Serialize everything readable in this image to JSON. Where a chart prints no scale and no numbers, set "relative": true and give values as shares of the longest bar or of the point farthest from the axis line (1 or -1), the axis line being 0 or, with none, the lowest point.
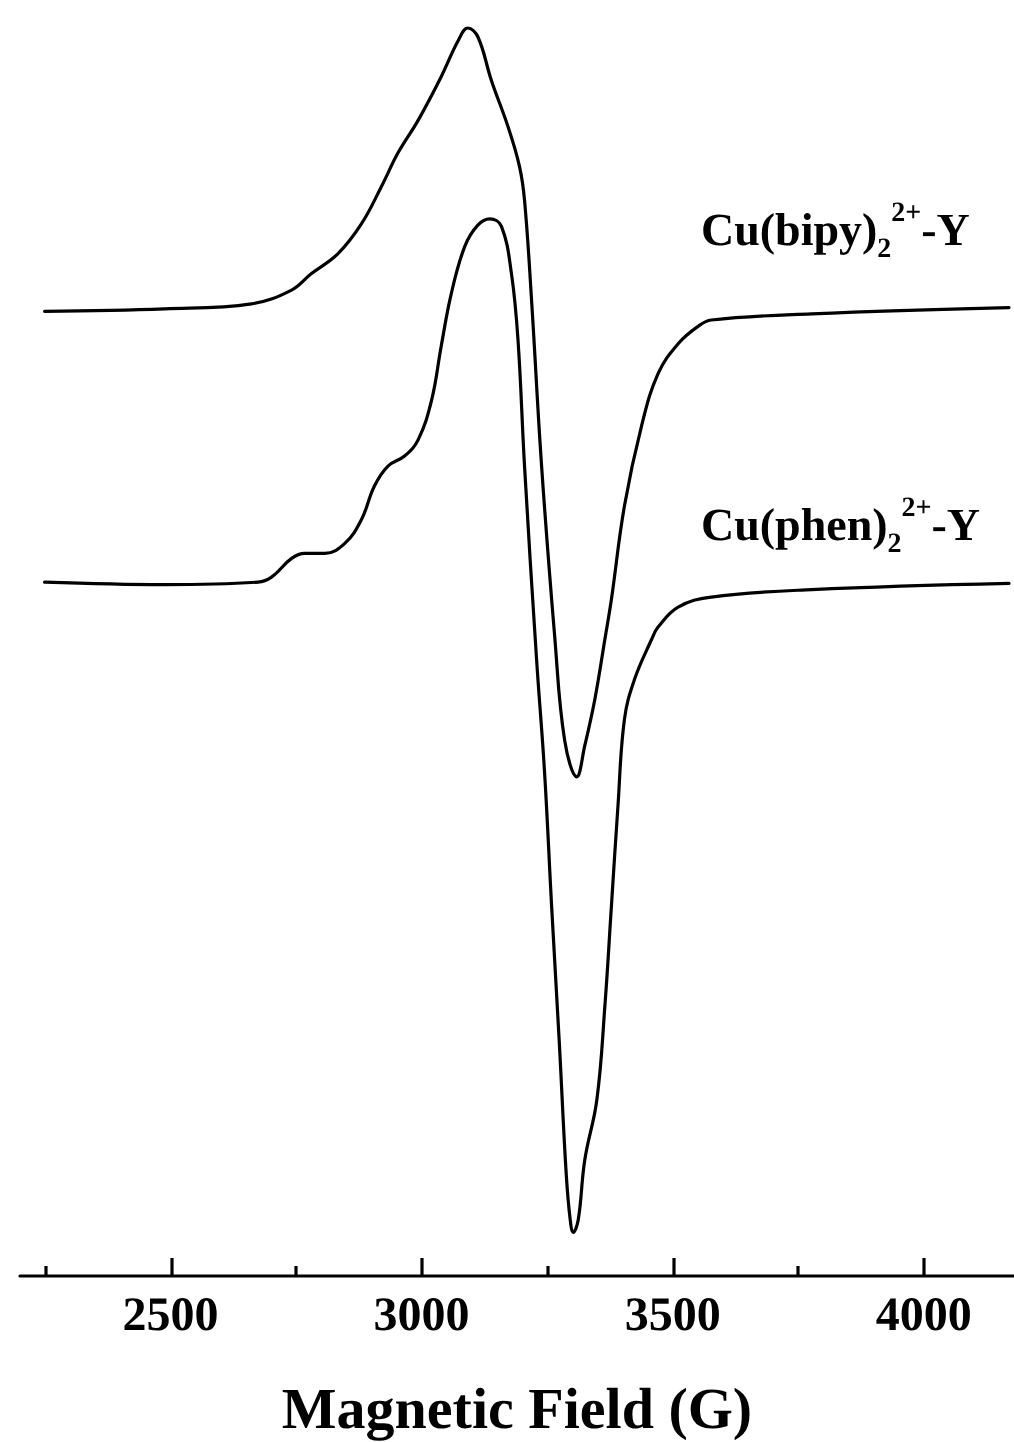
{
  "chart_data": {
    "type": "line",
    "xlabel": "Magnetic Field (G)",
    "relative": true,
    "tick_labels": "x",
    "marker": "none",
    "line_style": "solid",
    "xlim": [
      2200,
      4180
    ],
    "xticks": [
      {
        "value": 2250,
        "label": null
      },
      2500,
      {
        "value": 2750,
        "label": null
      },
      3000,
      {
        "value": 3250,
        "label": null
      },
      3500,
      {
        "value": 3750,
        "label": null
      },
      4000
    ],
    "series": [
      {
        "name": "Cu(bipy)$_{2}$$^{2+}$-Y",
        "color": "#000000",
        "x": [
          2249,
          2488,
          2661,
          2741,
          2780,
          2833,
          2880,
          2920,
          2953,
          2993,
          3039,
          3073,
          3092,
          3112,
          3139,
          3172,
          3195,
          3205,
          3219,
          3239,
          3265,
          3285,
          3309,
          3325,
          3345,
          3365,
          3378,
          3404,
          3438,
          3471,
          3511,
          3551,
          3577,
          3777,
          4170
        ],
        "values": [
          0.773,
          0.775,
          0.779,
          0.79,
          0.803,
          0.819,
          0.843,
          0.873,
          0.9,
          0.926,
          0.961,
          0.99,
          1.0,
          0.993,
          0.958,
          0.921,
          0.889,
          0.862,
          0.782,
          0.649,
          0.513,
          0.429,
          0.4,
          0.425,
          0.462,
          0.51,
          0.542,
          0.617,
          0.681,
          0.723,
          0.747,
          0.761,
          0.766,
          0.771,
          0.776
        ]
      },
      {
        "name": "Cu(phen)$_{2}$$^{2+}$-Y",
        "color": "#000000",
        "x": [
          2249,
          2488,
          2674,
          2701,
          2741,
          2767,
          2807,
          2847,
          2880,
          2906,
          2933,
          2966,
          2993,
          3020,
          3039,
          3059,
          3086,
          3112,
          3136,
          3159,
          3179,
          3192,
          3205,
          3229,
          3245,
          3259,
          3274,
          3288,
          3296,
          3302,
          3312,
          3325,
          3349,
          3365,
          3378,
          3391,
          3404,
          3424,
          3458,
          3471,
          3511,
          3577,
          3777,
          4170
        ],
        "values": [
          0.556,
          0.554,
          0.556,
          0.56,
          0.575,
          0.579,
          0.579,
          0.587,
          0.606,
          0.633,
          0.649,
          0.657,
          0.67,
          0.702,
          0.745,
          0.787,
          0.825,
          0.842,
          0.847,
          0.841,
          0.803,
          0.75,
          0.649,
          0.494,
          0.403,
          0.296,
          0.189,
          0.082,
          0.045,
          0.035,
          0.045,
          0.093,
          0.141,
          0.216,
          0.296,
          0.376,
          0.446,
          0.478,
          0.51,
          0.52,
          0.536,
          0.544,
          0.55,
          0.555
        ]
      }
    ]
  }
}
